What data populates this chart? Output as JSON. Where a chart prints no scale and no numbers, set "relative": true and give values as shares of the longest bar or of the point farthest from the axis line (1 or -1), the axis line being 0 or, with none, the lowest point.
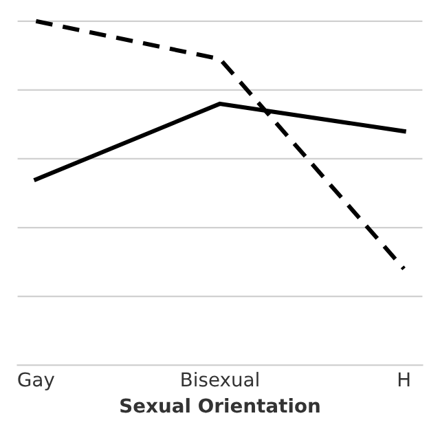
{
  "chart_data": {
    "type": "line",
    "relative": true,
    "xlabel": "Sexual Orientation",
    "categories": [
      "Gay",
      "Bisexual",
      "H"
    ],
    "grid": "y",
    "marker": "none",
    "series": [
      {
        "color": "#000000",
        "line_style": "dashed",
        "values": [
          1,
          0.89,
          0.28
        ]
      },
      {
        "color": "#000000",
        "line_style": "solid",
        "values": [
          0.54,
          0.76,
          0.68
        ]
      }
    ]
  }
}
